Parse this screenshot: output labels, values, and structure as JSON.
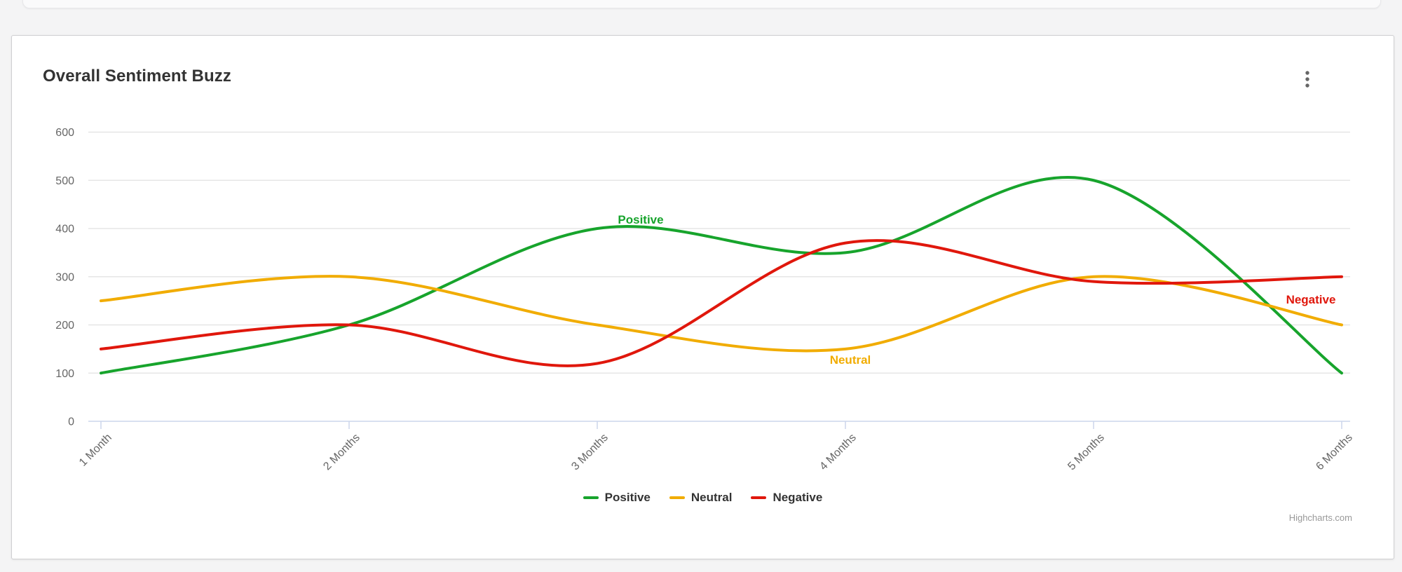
{
  "card": {
    "title": "Overall Sentiment Buzz",
    "menu_icon": "kebab-vertical-dots"
  },
  "chart_data": {
    "type": "line",
    "title": "Overall Sentiment Buzz",
    "categories": [
      "1 Month",
      "2 Months",
      "3 Months",
      "4 Months",
      "5 Months",
      "6 Months"
    ],
    "series": [
      {
        "name": "Positive",
        "color": "#17a42c",
        "values": [
          100,
          200,
          400,
          350,
          500,
          100
        ]
      },
      {
        "name": "Neutral",
        "color": "#f1ac00",
        "values": [
          250,
          300,
          200,
          150,
          300,
          200
        ]
      },
      {
        "name": "Negative",
        "color": "#e0170c",
        "values": [
          150,
          200,
          120,
          370,
          290,
          300
        ]
      }
    ],
    "yticks": [
      0,
      100,
      200,
      300,
      400,
      500,
      600
    ],
    "ylim": [
      0,
      600
    ],
    "xlabel": "",
    "ylabel": "",
    "grid": true,
    "grid_color": "#e6e6e6",
    "axis_line_color": "#ccd6eb",
    "x_label_rotation": -45,
    "legend_position": "bottom",
    "series_labels_on_chart": [
      {
        "series": "Positive",
        "anchor_point": 3
      },
      {
        "series": "Neutral",
        "anchor_point": 3
      },
      {
        "series": "Negative",
        "anchor_point": 5
      }
    ]
  },
  "credit": {
    "label": "Highcharts.com"
  }
}
